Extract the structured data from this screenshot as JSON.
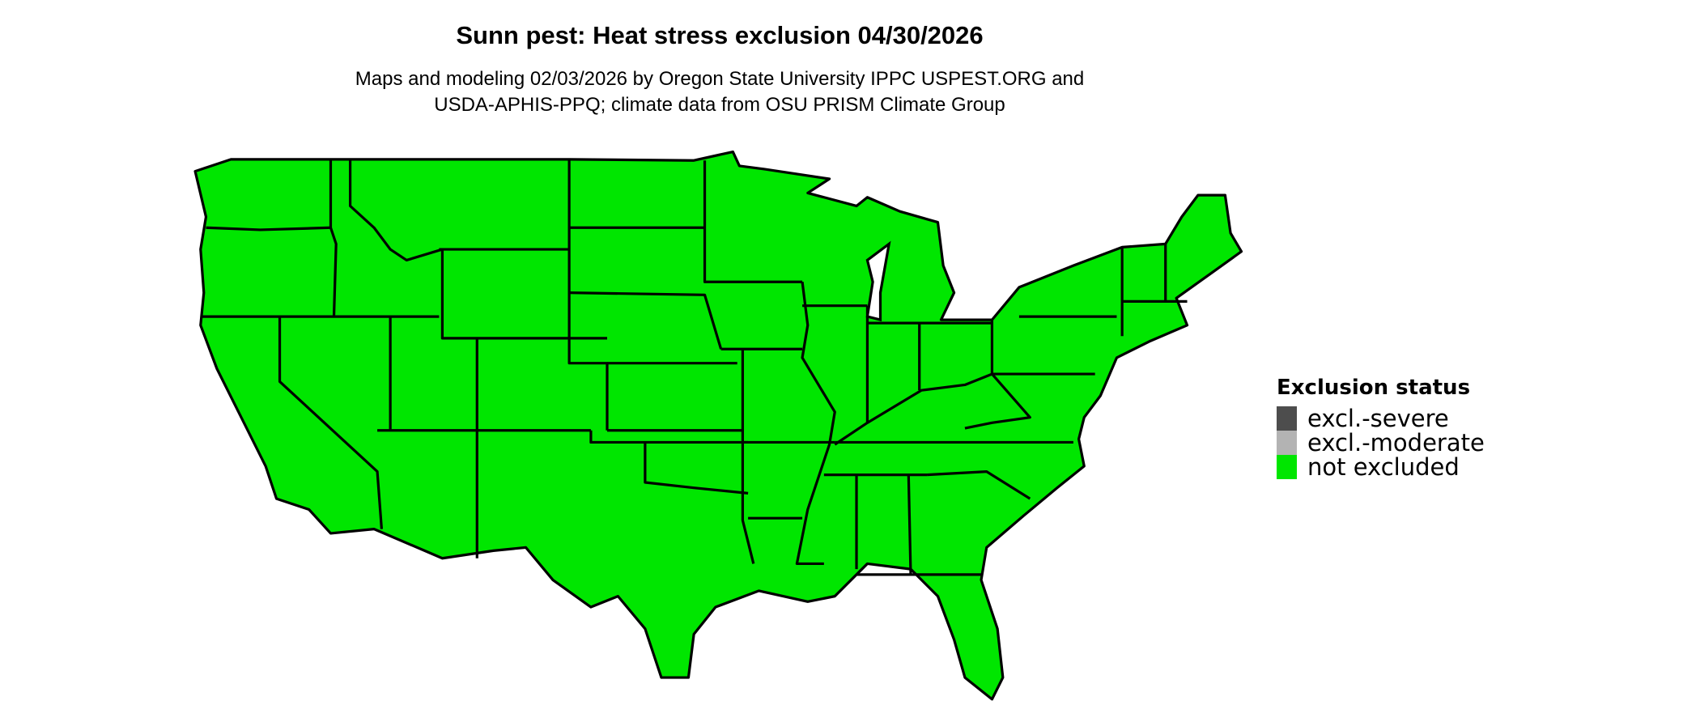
{
  "title": "Sunn pest: Heat stress exclusion 04/30/2026",
  "subtitle_line1": "Maps and modeling 02/03/2026 by Oregon State University IPPC USPEST.ORG and",
  "subtitle_line2": "USDA-APHIS-PPQ; climate data from OSU PRISM Climate Group",
  "map": {
    "region": "Contiguous United States",
    "fill_color": "#00e600",
    "border_color": "#000000",
    "state_status_all": "not excluded"
  },
  "legend": {
    "title": "Exclusion status",
    "items": [
      {
        "label": "excl.-severe",
        "color": "#4d4d4d"
      },
      {
        "label": "excl.-moderate",
        "color": "#b3b3b3"
      },
      {
        "label": "not excluded",
        "color": "#00e600"
      }
    ]
  }
}
